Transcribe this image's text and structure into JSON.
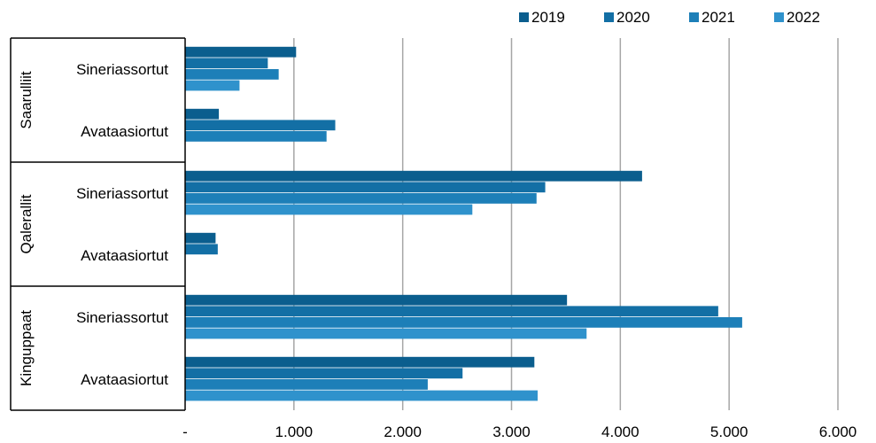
{
  "chart_data": {
    "type": "bar",
    "orientation": "horizontal",
    "groups": [
      "Saarulliit",
      "Qalerallit",
      "Kinguppaat"
    ],
    "categories": [
      "Sineriassortut",
      "Avataasiortut"
    ],
    "series": [
      {
        "name": "2019",
        "color": "#0b5e8e",
        "values": [
          [
            1020,
            310
          ],
          [
            4200,
            280
          ],
          [
            3510,
            3210
          ]
        ]
      },
      {
        "name": "2020",
        "color": "#136fa5",
        "values": [
          [
            760,
            1380
          ],
          [
            3310,
            300
          ],
          [
            4900,
            2550
          ]
        ]
      },
      {
        "name": "2021",
        "color": "#1d7fb8",
        "values": [
          [
            860,
            1300
          ],
          [
            3230,
            0
          ],
          [
            5120,
            2230
          ]
        ]
      },
      {
        "name": "2022",
        "color": "#2f92cc",
        "values": [
          [
            500,
            0
          ],
          [
            2640,
            0
          ],
          [
            3690,
            3240
          ]
        ]
      }
    ],
    "xlim": [
      0,
      6000
    ],
    "xticks": [
      0,
      1000,
      2000,
      3000,
      4000,
      5000,
      6000
    ],
    "xtick_labels": [
      "-",
      "1.000",
      "2.000",
      "3.000",
      "4.000",
      "5.000",
      "6.000"
    ],
    "grid": "vertical",
    "legend": "top-right"
  }
}
